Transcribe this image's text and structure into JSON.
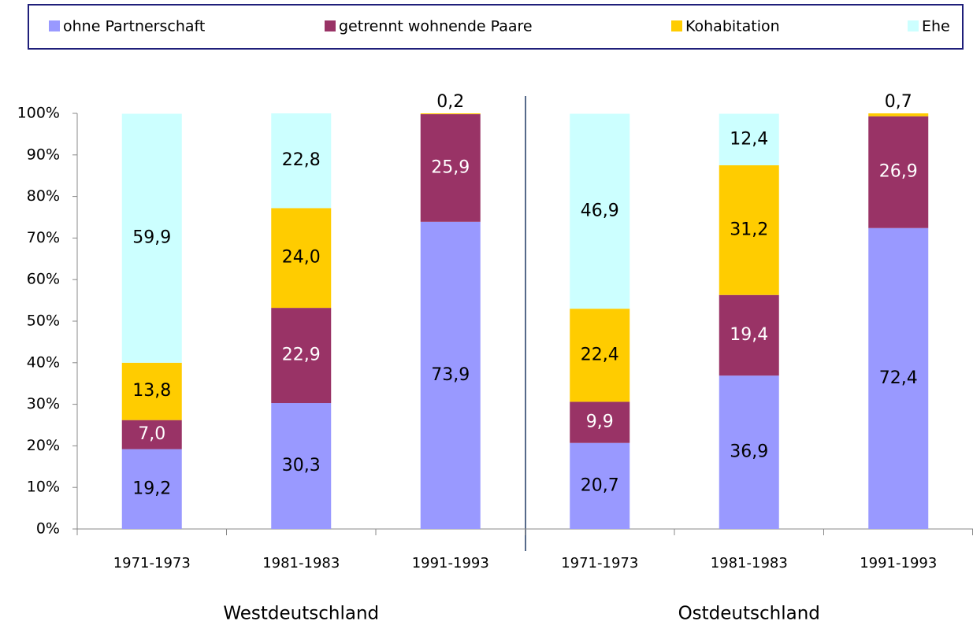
{
  "chart_data": {
    "type": "stacked_bar",
    "categories": [
      "1971-1973",
      "1981-1983",
      "1991-1993",
      "1971-1973",
      "1981-1983",
      "1991-1993"
    ],
    "groups": [
      "Westdeutschland",
      "Ostdeutschland"
    ],
    "series": [
      {
        "name": "ohne Partnerschaft",
        "color": "#9999ff",
        "values": [
          19.2,
          30.3,
          73.9,
          20.7,
          36.9,
          72.4
        ],
        "value_labels": [
          "19,2",
          "30,3",
          "73,9",
          "20,7",
          "36,9",
          "72,4"
        ]
      },
      {
        "name": "getrennt wohnende Paare",
        "color": "#993366",
        "values": [
          7.0,
          22.9,
          25.9,
          9.9,
          19.4,
          26.9
        ],
        "value_labels": [
          "7,0",
          "22,9",
          "25,9",
          "9,9",
          "19,4",
          "26,9"
        ]
      },
      {
        "name": "Kohabitation",
        "color": "#ffcc00",
        "values": [
          13.8,
          24.0,
          0.2,
          22.4,
          31.2,
          0.7
        ],
        "value_labels": [
          "13,8",
          "24,0",
          "0,2",
          "22,4",
          "31,2",
          "0,7"
        ]
      },
      {
        "name": "Ehe",
        "color": "#ccffff",
        "values": [
          59.9,
          22.8,
          null,
          46.9,
          12.4,
          null
        ],
        "value_labels": [
          "59,9",
          "22,8",
          null,
          "46,9",
          "12,4",
          null
        ]
      }
    ],
    "ylim": [
      0,
      100
    ],
    "yticks": [
      {
        "value": 0,
        "label": "0%"
      },
      {
        "value": 10,
        "label": "10%"
      },
      {
        "value": 20,
        "label": "20%"
      },
      {
        "value": 30,
        "label": "30%"
      },
      {
        "value": 40,
        "label": "40%"
      },
      {
        "value": 50,
        "label": "50%"
      },
      {
        "value": 60,
        "label": "60%"
      },
      {
        "value": 70,
        "label": "70%"
      },
      {
        "value": 80,
        "label": "80%"
      },
      {
        "value": 90,
        "label": "90%"
      },
      {
        "value": 100,
        "label": "100%"
      }
    ],
    "legend": "top"
  }
}
